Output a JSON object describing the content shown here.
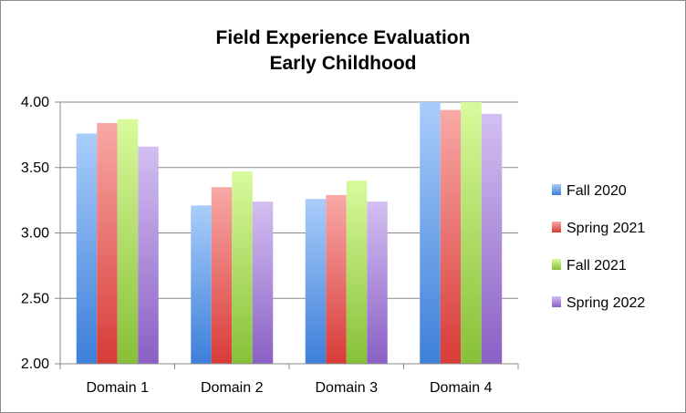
{
  "chart_data": {
    "type": "bar",
    "title_lines": [
      "Field Experience Evaluation",
      "Early Childhood"
    ],
    "xlabel": "",
    "ylabel": "",
    "categories": [
      "Domain 1",
      "Domain 2",
      "Domain 3",
      "Domain 4"
    ],
    "series": [
      {
        "name": "Fall 2020",
        "values": [
          3.76,
          3.21,
          3.26,
          4.0
        ],
        "color_light": "#a9cdfa",
        "color_dark": "#3d7fd9"
      },
      {
        "name": "Spring 2021",
        "values": [
          3.84,
          3.35,
          3.29,
          3.94
        ],
        "color_light": "#f8a9a6",
        "color_dark": "#d83b37"
      },
      {
        "name": "Fall 2021",
        "values": [
          3.87,
          3.47,
          3.4,
          4.0
        ],
        "color_light": "#d9fa9c",
        "color_dark": "#87c038"
      },
      {
        "name": "Spring 2022",
        "values": [
          3.66,
          3.24,
          3.24,
          3.91
        ],
        "color_light": "#d3bff2",
        "color_dark": "#8a60c4"
      }
    ],
    "ylim": [
      2.0,
      4.0
    ],
    "yticks": [
      "2.00",
      "2.50",
      "3.00",
      "3.50",
      "4.00"
    ],
    "grid": true,
    "legend_position": "right"
  }
}
